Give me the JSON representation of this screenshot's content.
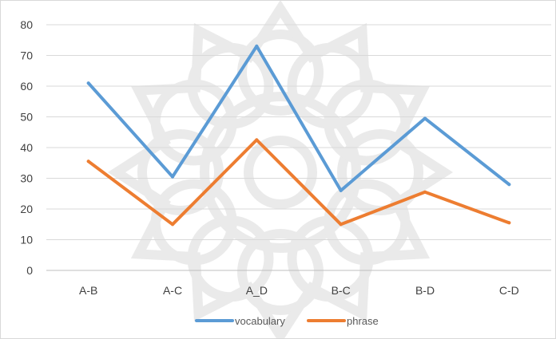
{
  "chart_data": {
    "type": "line",
    "categories": [
      "A-B",
      "A-C",
      "A_D",
      "B-C",
      "B-D",
      "C-D"
    ],
    "series": [
      {
        "name": "vocabulary",
        "values": [
          61,
          30.5,
          73,
          26,
          49.5,
          28
        ],
        "color": "#5b9bd5"
      },
      {
        "name": "phrase",
        "values": [
          35.5,
          15,
          42.5,
          15,
          25.5,
          15.5
        ],
        "color": "#ed7d31"
      }
    ],
    "yticks": [
      "0",
      "10",
      "20",
      "30",
      "40",
      "50",
      "60",
      "70",
      "80"
    ],
    "ylim": [
      0,
      80
    ],
    "grid": true,
    "legend_position": "bottom",
    "watermark": "decorative-rosette"
  }
}
